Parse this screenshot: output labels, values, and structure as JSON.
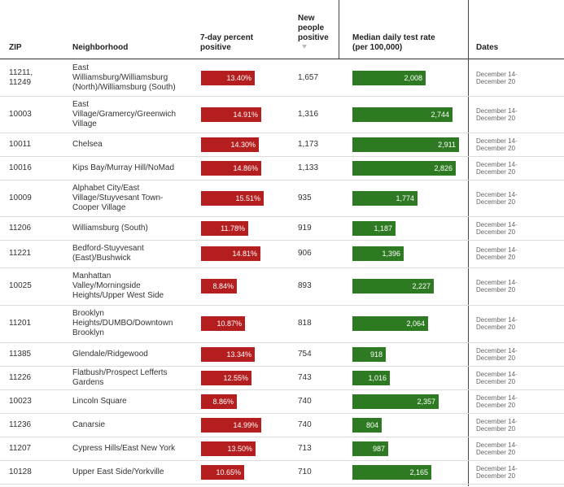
{
  "headers": {
    "zip": "ZIP",
    "neighborhood": "Neighborhood",
    "percent_positive": [
      "7-day percent",
      "positive"
    ],
    "new_positive": [
      "New",
      "people",
      "positive"
    ],
    "test_rate": [
      "Median daily test rate",
      "(per 100,000)"
    ],
    "dates": "Dates"
  },
  "colors": {
    "percent_bar": "#b41e1e",
    "test_rate_bar": "#2e7a22"
  },
  "chart_data": {
    "type": "table",
    "sort": {
      "column": "new_positive",
      "order": "descending"
    },
    "columns": [
      "ZIP",
      "Neighborhood",
      "7-day percent positive",
      "New people positive",
      "Median daily test rate (per 100,000)",
      "Dates"
    ],
    "rows": [
      {
        "zip": [
          "11211,",
          "11249"
        ],
        "neighborhood": [
          "East",
          "Williamsburg/Williamsburg",
          "(North)/Williamsburg (South)"
        ],
        "pct": 13.4,
        "pct_label": "13.40%",
        "new_positive": "1,657",
        "rate": 2008,
        "rate_label": "2,008",
        "dates": [
          "December 14-",
          "December 20"
        ]
      },
      {
        "zip": [
          "10003"
        ],
        "neighborhood": [
          "East",
          "Village/Gramercy/Greenwich",
          "Village"
        ],
        "pct": 14.91,
        "pct_label": "14.91%",
        "new_positive": "1,316",
        "rate": 2744,
        "rate_label": "2,744",
        "dates": [
          "December 14-",
          "December 20"
        ]
      },
      {
        "zip": [
          "10011"
        ],
        "neighborhood": [
          "Chelsea"
        ],
        "pct": 14.3,
        "pct_label": "14.30%",
        "new_positive": "1,173",
        "rate": 2911,
        "rate_label": "2,911",
        "dates": [
          "December 14-",
          "December 20"
        ]
      },
      {
        "zip": [
          "10016"
        ],
        "neighborhood": [
          "Kips Bay/Murray Hill/NoMad"
        ],
        "pct": 14.86,
        "pct_label": "14.86%",
        "new_positive": "1,133",
        "rate": 2826,
        "rate_label": "2,826",
        "dates": [
          "December 14-",
          "December 20"
        ]
      },
      {
        "zip": [
          "10009"
        ],
        "neighborhood": [
          "Alphabet City/East",
          "Village/Stuyvesant Town-",
          "Cooper Village"
        ],
        "pct": 15.51,
        "pct_label": "15.51%",
        "new_positive": "935",
        "rate": 1774,
        "rate_label": "1,774",
        "dates": [
          "December 14-",
          "December 20"
        ]
      },
      {
        "zip": [
          "11206"
        ],
        "neighborhood": [
          "Williamsburg (South)"
        ],
        "pct": 11.78,
        "pct_label": "11.78%",
        "new_positive": "919",
        "rate": 1187,
        "rate_label": "1,187",
        "dates": [
          "December 14-",
          "December 20"
        ]
      },
      {
        "zip": [
          "11221"
        ],
        "neighborhood": [
          "Bedford-Stuyvesant",
          "(East)/Bushwick"
        ],
        "pct": 14.81,
        "pct_label": "14.81%",
        "new_positive": "906",
        "rate": 1396,
        "rate_label": "1,396",
        "dates": [
          "December 14-",
          "December 20"
        ]
      },
      {
        "zip": [
          "10025"
        ],
        "neighborhood": [
          "Manhattan",
          "Valley/Morningside",
          "Heights/Upper West Side"
        ],
        "pct": 8.84,
        "pct_label": "8.84%",
        "new_positive": "893",
        "rate": 2227,
        "rate_label": "2,227",
        "dates": [
          "December 14-",
          "December 20"
        ]
      },
      {
        "zip": [
          "11201"
        ],
        "neighborhood": [
          "Brooklyn",
          "Heights/DUMBO/Downtown",
          "Brooklyn"
        ],
        "pct": 10.87,
        "pct_label": "10.87%",
        "new_positive": "818",
        "rate": 2064,
        "rate_label": "2,064",
        "dates": [
          "December 14-",
          "December 20"
        ]
      },
      {
        "zip": [
          "11385"
        ],
        "neighborhood": [
          "Glendale/Ridgewood"
        ],
        "pct": 13.34,
        "pct_label": "13.34%",
        "new_positive": "754",
        "rate": 918,
        "rate_label": "918",
        "dates": [
          "December 14-",
          "December 20"
        ]
      },
      {
        "zip": [
          "11226"
        ],
        "neighborhood": [
          "Flatbush/Prospect Lefferts",
          "Gardens"
        ],
        "pct": 12.55,
        "pct_label": "12.55%",
        "new_positive": "743",
        "rate": 1016,
        "rate_label": "1,016",
        "dates": [
          "December 14-",
          "December 20"
        ]
      },
      {
        "zip": [
          "10023"
        ],
        "neighborhood": [
          "Lincoln Square"
        ],
        "pct": 8.86,
        "pct_label": "8.86%",
        "new_positive": "740",
        "rate": 2357,
        "rate_label": "2,357",
        "dates": [
          "December 14-",
          "December 20"
        ]
      },
      {
        "zip": [
          "11236"
        ],
        "neighborhood": [
          "Canarsie"
        ],
        "pct": 14.99,
        "pct_label": "14.99%",
        "new_positive": "740",
        "rate": 804,
        "rate_label": "804",
        "dates": [
          "December 14-",
          "December 20"
        ]
      },
      {
        "zip": [
          "11207"
        ],
        "neighborhood": [
          "Cypress Hills/East New York"
        ],
        "pct": 13.5,
        "pct_label": "13.50%",
        "new_positive": "713",
        "rate": 987,
        "rate_label": "987",
        "dates": [
          "December 14-",
          "December 20"
        ]
      },
      {
        "zip": [
          "10128"
        ],
        "neighborhood": [
          "Upper East Side/Yorkville"
        ],
        "pct": 10.65,
        "pct_label": "10.65%",
        "new_positive": "710",
        "rate": 2165,
        "rate_label": "2,165",
        "dates": [
          "December 14-",
          "December 20"
        ]
      }
    ]
  }
}
